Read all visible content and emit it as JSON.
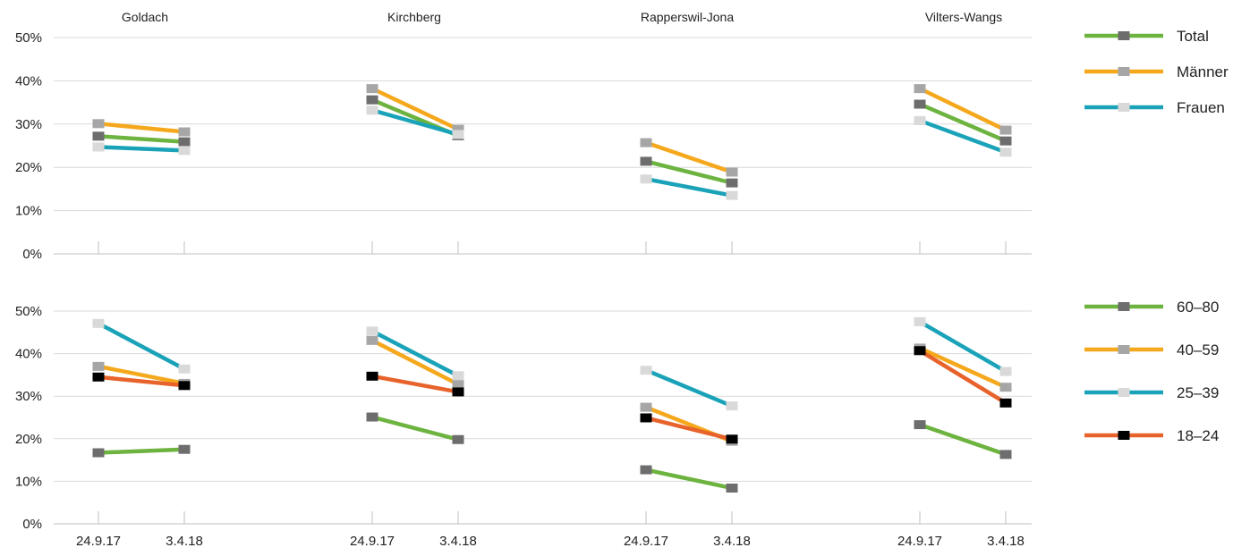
{
  "chart_data": [
    {
      "type": "line",
      "groups": [
        "Goldach",
        "Kirchberg",
        "Rapperswil-Jona",
        "Vilters-Wangs"
      ],
      "x": [
        "24.9.17",
        "3.4.18"
      ],
      "yticks": [
        "0%",
        "10%",
        "20%",
        "30%",
        "40%",
        "50%"
      ],
      "ylim": [
        0,
        50
      ],
      "unit": "%",
      "grid": true,
      "legend_position": "right",
      "series": [
        {
          "name": "Total",
          "color": "#6db33f",
          "marker_color": "#6d6d6d",
          "values": [
            [
              27.2,
              25.9
            ],
            [
              35.6,
              27.3
            ],
            [
              21.4,
              16.4
            ],
            [
              34.6,
              26.1
            ]
          ]
        },
        {
          "name": "Männer",
          "color": "#f5a81c",
          "marker_color": "#a6a6a6",
          "values": [
            [
              30.1,
              28.2
            ],
            [
              38.2,
              28.8
            ],
            [
              25.7,
              18.9
            ],
            [
              38.2,
              28.6
            ]
          ]
        },
        {
          "name": "Frauen",
          "color": "#1aa3b8",
          "marker_color": "#d9d9d9",
          "values": [
            [
              24.7,
              23.9
            ],
            [
              33.2,
              27.6
            ],
            [
              17.3,
              13.5
            ],
            [
              30.8,
              23.5
            ]
          ]
        }
      ]
    },
    {
      "type": "line",
      "groups": [
        "Goldach",
        "Kirchberg",
        "Rapperswil-Jona",
        "Vilters-Wangs"
      ],
      "x": [
        "24.9.17",
        "3.4.18"
      ],
      "yticks": [
        "0%",
        "10%",
        "20%",
        "30%",
        "40%",
        "50%"
      ],
      "ylim": [
        0,
        50
      ],
      "unit": "%",
      "grid": true,
      "legend_position": "right",
      "series": [
        {
          "name": "60–80",
          "color": "#6db33f",
          "marker_color": "#6d6d6d",
          "values": [
            [
              16.7,
              17.5
            ],
            [
              25.1,
              19.8
            ],
            [
              12.7,
              8.4
            ],
            [
              23.3,
              16.3
            ]
          ]
        },
        {
          "name": "40–59",
          "color": "#f5a81c",
          "marker_color": "#a6a6a6",
          "values": [
            [
              37.0,
              33.0
            ],
            [
              43.1,
              32.8
            ],
            [
              27.4,
              19.4
            ],
            [
              41.3,
              32.1
            ]
          ]
        },
        {
          "name": "25–39",
          "color": "#1aa3b8",
          "marker_color": "#d9d9d9",
          "values": [
            [
              47.1,
              36.4
            ],
            [
              45.3,
              34.8
            ],
            [
              36.1,
              27.7
            ],
            [
              47.5,
              35.8
            ]
          ]
        },
        {
          "name": "18–24",
          "color": "#e8632b",
          "marker_color": "#000000",
          "values": [
            [
              34.5,
              32.5
            ],
            [
              34.7,
              31.0
            ],
            [
              24.9,
              19.9
            ],
            [
              40.7,
              28.4
            ]
          ]
        }
      ]
    }
  ]
}
